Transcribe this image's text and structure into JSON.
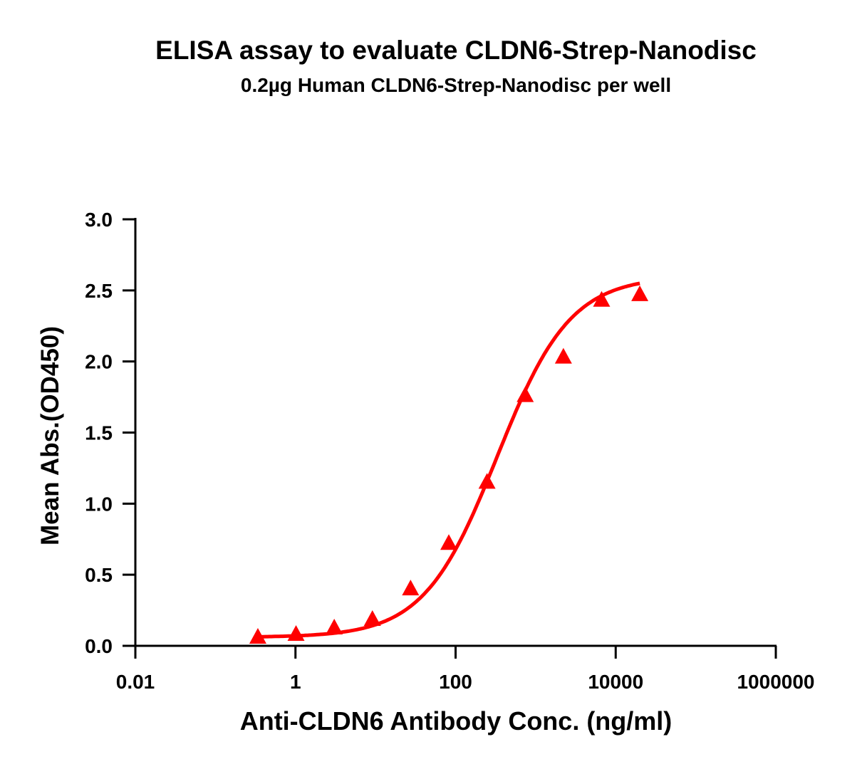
{
  "chart_data": {
    "type": "scatter",
    "title": "ELISA assay to evaluate CLDN6-Strep-Nanodisc",
    "subtitle": "0.2µg Human CLDN6-Strep-Nanodisc per well",
    "xlabel": "Anti-CLDN6 Antibody Conc. (ng/ml)",
    "ylabel": "Mean Abs.(OD450)",
    "x_scale": "log",
    "xlim": [
      0.01,
      1000000
    ],
    "ylim": [
      0,
      3.0
    ],
    "x_ticks": [
      "0.01",
      "1",
      "100",
      "10000",
      "1000000"
    ],
    "y_ticks": [
      "0.0",
      "0.5",
      "1.0",
      "1.5",
      "2.0",
      "2.5",
      "3.0"
    ],
    "grid": false,
    "series": [
      {
        "marker": "triangle",
        "color": "#ff0000",
        "x": [
          0.339,
          1.016,
          3.05,
          9.14,
          27.4,
          82.3,
          247,
          741,
          2222,
          6667,
          20000
        ],
        "y": [
          0.06,
          0.08,
          0.125,
          0.185,
          0.4,
          0.72,
          1.15,
          1.76,
          2.03,
          2.43,
          2.47
        ],
        "fit_curve": {
          "model": "4PL",
          "bottom": 0.06,
          "top": 2.6,
          "ec50": 330,
          "hill": 0.95
        }
      }
    ]
  }
}
